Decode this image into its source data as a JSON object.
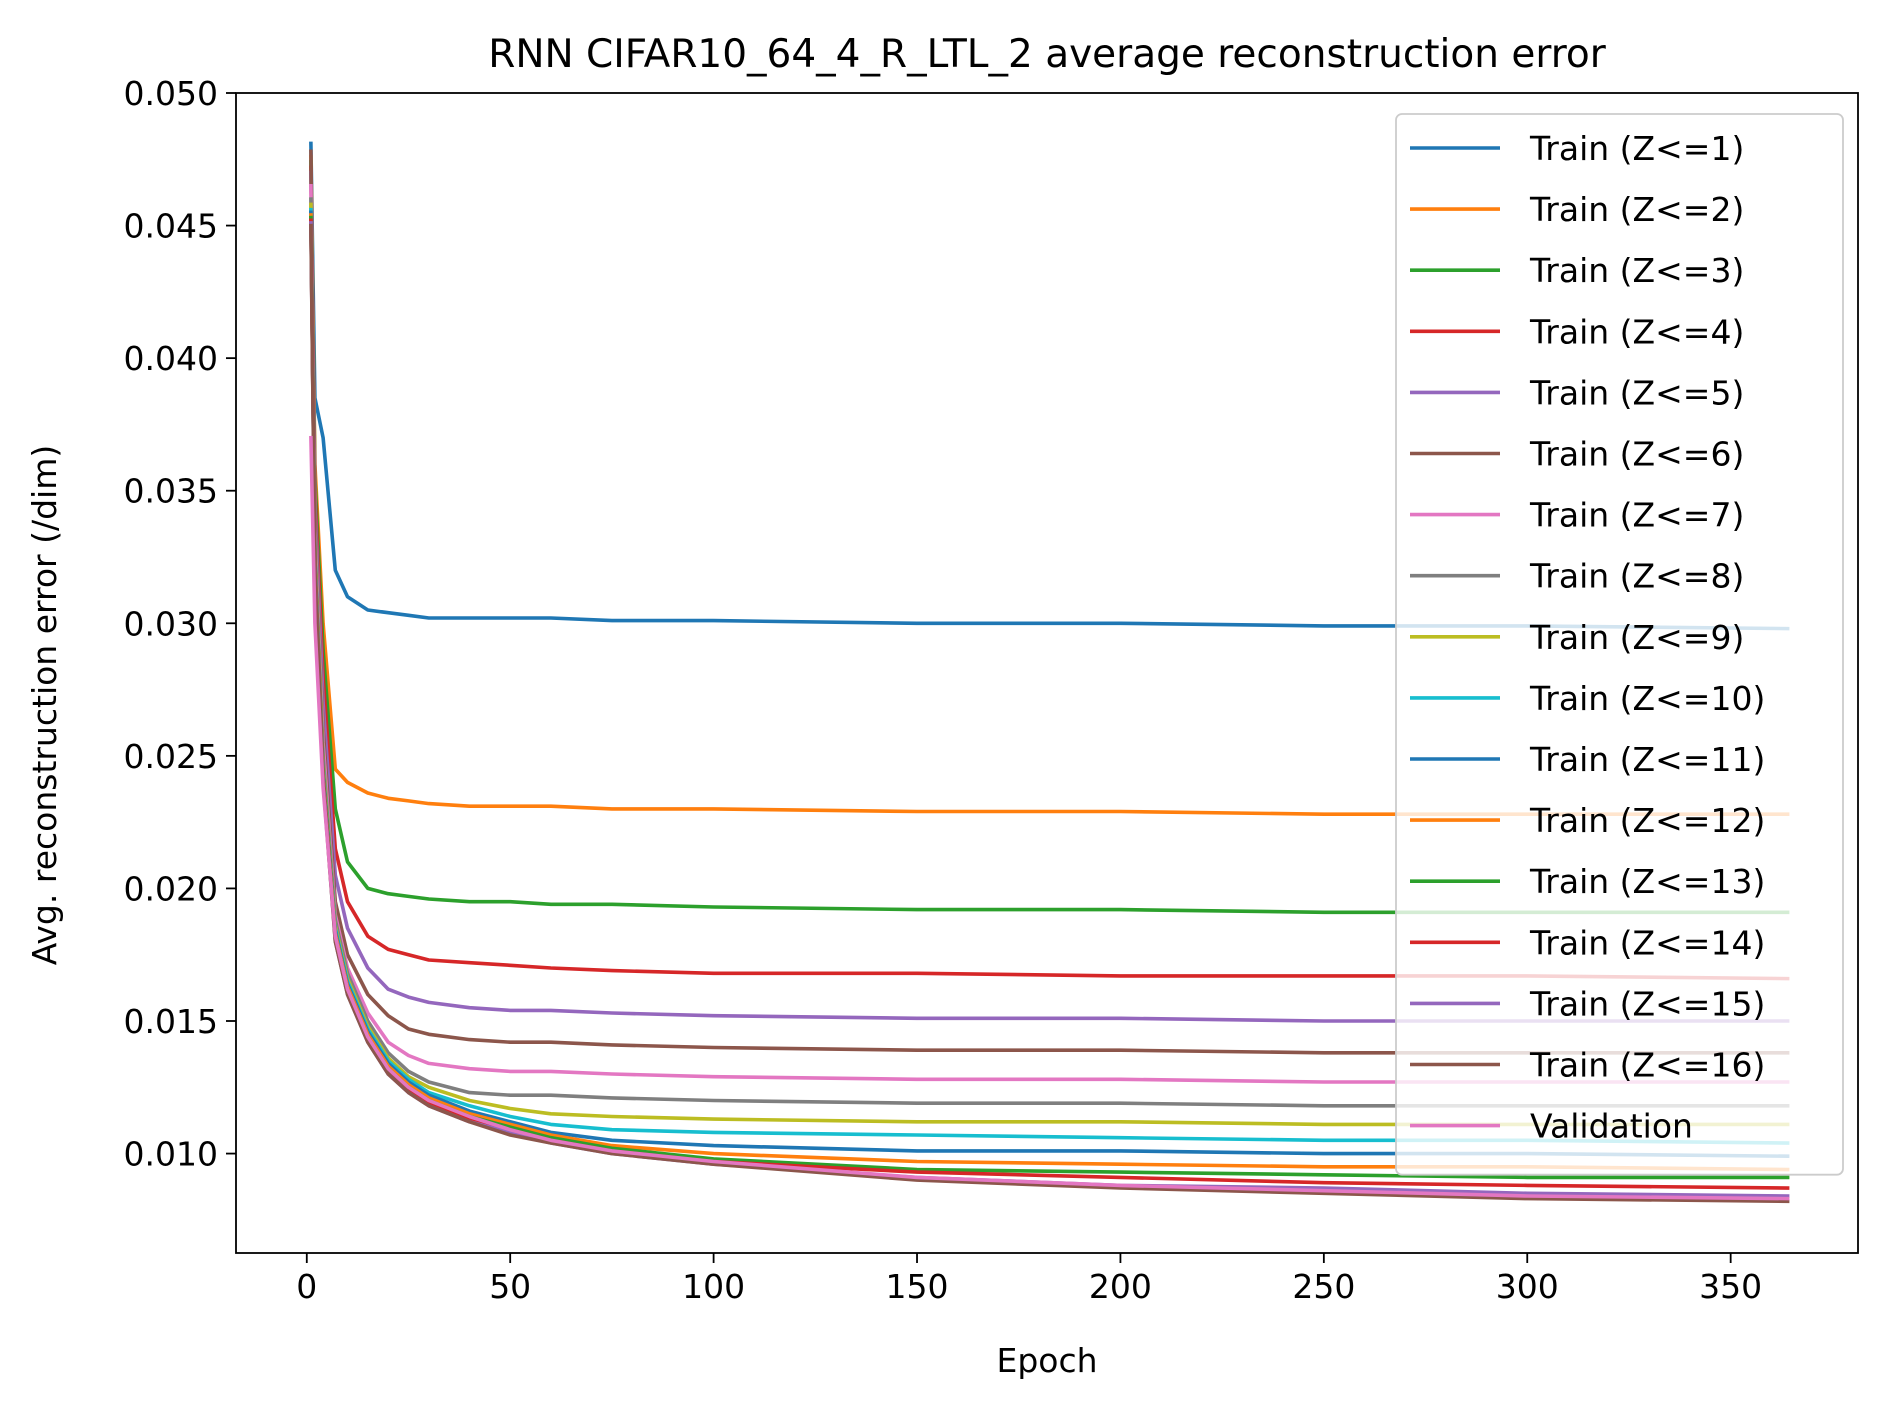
{
  "chart_data": {
    "type": "line",
    "title": "RNN CIFAR10_64_4_R_LTL_2 average reconstruction error",
    "xlabel": "Epoch",
    "ylabel": "Avg. reconstruction error (/dim)",
    "xlim": [
      -17.4,
      381.3
    ],
    "ylim": [
      0.00625,
      0.05
    ],
    "x_ticks": [
      0,
      50,
      100,
      150,
      200,
      250,
      300,
      350
    ],
    "y_ticks": [
      0.01,
      0.015,
      0.02,
      0.025,
      0.03,
      0.035,
      0.04,
      0.045,
      0.05
    ],
    "y_tick_labels": [
      "0.010",
      "0.015",
      "0.020",
      "0.025",
      "0.030",
      "0.035",
      "0.040",
      "0.045",
      "0.050"
    ],
    "grid": false,
    "legend_position": "upper-right",
    "x": [
      1,
      2,
      4,
      7,
      10,
      15,
      20,
      25,
      30,
      40,
      50,
      60,
      75,
      100,
      150,
      200,
      250,
      300,
      364
    ],
    "series": [
      {
        "name": "Train (Z<=1)",
        "color": "#1f77b4",
        "values": [
          0.0481,
          0.0385,
          0.037,
          0.032,
          0.031,
          0.0305,
          0.0304,
          0.0303,
          0.0302,
          0.0302,
          0.0302,
          0.0302,
          0.0301,
          0.0301,
          0.03,
          0.03,
          0.0299,
          0.0299,
          0.0298
        ]
      },
      {
        "name": "Train (Z<=2)",
        "color": "#ff7f0e",
        "values": [
          0.0476,
          0.036,
          0.03,
          0.0245,
          0.024,
          0.0236,
          0.0234,
          0.0233,
          0.0232,
          0.0231,
          0.0231,
          0.0231,
          0.023,
          0.023,
          0.0229,
          0.0229,
          0.0228,
          0.0228,
          0.0228
        ]
      },
      {
        "name": "Train (Z<=3)",
        "color": "#2ca02c",
        "values": [
          0.0474,
          0.0355,
          0.029,
          0.023,
          0.021,
          0.02,
          0.0198,
          0.0197,
          0.0196,
          0.0195,
          0.0195,
          0.0194,
          0.0194,
          0.0193,
          0.0192,
          0.0192,
          0.0191,
          0.0191,
          0.0191
        ]
      },
      {
        "name": "Train (Z<=4)",
        "color": "#d62728",
        "values": [
          0.0472,
          0.035,
          0.028,
          0.0215,
          0.0195,
          0.0182,
          0.0177,
          0.0175,
          0.0173,
          0.0172,
          0.0171,
          0.017,
          0.0169,
          0.0168,
          0.0168,
          0.0167,
          0.0167,
          0.0167,
          0.0166
        ]
      },
      {
        "name": "Train (Z<=5)",
        "color": "#9467bd",
        "values": [
          0.047,
          0.0345,
          0.027,
          0.0205,
          0.0185,
          0.017,
          0.0162,
          0.0159,
          0.0157,
          0.0155,
          0.0154,
          0.0154,
          0.0153,
          0.0152,
          0.0151,
          0.0151,
          0.015,
          0.015,
          0.015
        ]
      },
      {
        "name": "Train (Z<=6)",
        "color": "#8c564b",
        "values": [
          0.0478,
          0.034,
          0.026,
          0.0195,
          0.0175,
          0.016,
          0.0152,
          0.0147,
          0.0145,
          0.0143,
          0.0142,
          0.0142,
          0.0141,
          0.014,
          0.0139,
          0.0139,
          0.0138,
          0.0138,
          0.0138
        ]
      },
      {
        "name": "Train (Z<=7)",
        "color": "#e377c2",
        "values": [
          0.0465,
          0.0335,
          0.0255,
          0.019,
          0.017,
          0.0153,
          0.0142,
          0.0137,
          0.0134,
          0.0132,
          0.0131,
          0.0131,
          0.013,
          0.0129,
          0.0128,
          0.0128,
          0.0127,
          0.0127,
          0.0127
        ]
      },
      {
        "name": "Train (Z<=8)",
        "color": "#7f7f7f",
        "values": [
          0.046,
          0.033,
          0.025,
          0.0188,
          0.0168,
          0.015,
          0.0138,
          0.0131,
          0.0127,
          0.0123,
          0.0122,
          0.0122,
          0.0121,
          0.012,
          0.0119,
          0.0119,
          0.0118,
          0.0118,
          0.0118
        ]
      },
      {
        "name": "Train (Z<=9)",
        "color": "#bcbd22",
        "values": [
          0.0458,
          0.0328,
          0.0248,
          0.0186,
          0.0166,
          0.0148,
          0.0136,
          0.0129,
          0.0125,
          0.012,
          0.0117,
          0.0115,
          0.0114,
          0.0113,
          0.0112,
          0.0112,
          0.0111,
          0.0111,
          0.0111
        ]
      },
      {
        "name": "Train (Z<=10)",
        "color": "#17becf",
        "values": [
          0.0456,
          0.0326,
          0.0246,
          0.0185,
          0.0165,
          0.0147,
          0.0135,
          0.0128,
          0.0123,
          0.0118,
          0.0114,
          0.0111,
          0.0109,
          0.0108,
          0.0107,
          0.0106,
          0.0105,
          0.0105,
          0.0104
        ]
      },
      {
        "name": "Train (Z<=11)",
        "color": "#1f77b4",
        "values": [
          0.0455,
          0.0325,
          0.0245,
          0.0184,
          0.0164,
          0.0146,
          0.0134,
          0.0127,
          0.0122,
          0.0116,
          0.0112,
          0.0108,
          0.0105,
          0.0103,
          0.0101,
          0.0101,
          0.01,
          0.01,
          0.0099
        ]
      },
      {
        "name": "Train (Z<=12)",
        "color": "#ff7f0e",
        "values": [
          0.0454,
          0.0324,
          0.0244,
          0.0183,
          0.0163,
          0.0145,
          0.0133,
          0.0126,
          0.0121,
          0.0115,
          0.0111,
          0.0107,
          0.0103,
          0.01,
          0.0097,
          0.0096,
          0.0095,
          0.0095,
          0.0094
        ]
      },
      {
        "name": "Train (Z<=13)",
        "color": "#2ca02c",
        "values": [
          0.0453,
          0.0323,
          0.0243,
          0.0182,
          0.0162,
          0.0144,
          0.0132,
          0.0125,
          0.012,
          0.0114,
          0.011,
          0.0106,
          0.0102,
          0.0098,
          0.0094,
          0.0093,
          0.0092,
          0.0091,
          0.0091
        ]
      },
      {
        "name": "Train (Z<=14)",
        "color": "#d62728",
        "values": [
          0.0452,
          0.0322,
          0.0242,
          0.0181,
          0.0161,
          0.0143,
          0.0131,
          0.0124,
          0.0119,
          0.0113,
          0.0109,
          0.0105,
          0.0101,
          0.0097,
          0.0093,
          0.0091,
          0.0089,
          0.0088,
          0.0087
        ]
      },
      {
        "name": "Train (Z<=15)",
        "color": "#9467bd",
        "values": [
          0.0451,
          0.0321,
          0.0241,
          0.018,
          0.016,
          0.0142,
          0.013,
          0.0123,
          0.0118,
          0.0112,
          0.0108,
          0.0104,
          0.01,
          0.0096,
          0.0091,
          0.0088,
          0.0087,
          0.0085,
          0.0084
        ]
      },
      {
        "name": "Train (Z<=16)",
        "color": "#8c564b",
        "values": [
          0.045,
          0.032,
          0.024,
          0.018,
          0.016,
          0.0142,
          0.013,
          0.0123,
          0.0118,
          0.0112,
          0.0107,
          0.0104,
          0.01,
          0.0096,
          0.009,
          0.0087,
          0.0085,
          0.0083,
          0.0082
        ]
      },
      {
        "name": "Validation",
        "color": "#e377c2",
        "values": [
          0.037,
          0.03,
          0.0238,
          0.0182,
          0.0162,
          0.0144,
          0.0132,
          0.0125,
          0.012,
          0.0114,
          0.0109,
          0.0105,
          0.0101,
          0.0097,
          0.0091,
          0.0088,
          0.0086,
          0.0084,
          0.0083
        ]
      }
    ]
  }
}
